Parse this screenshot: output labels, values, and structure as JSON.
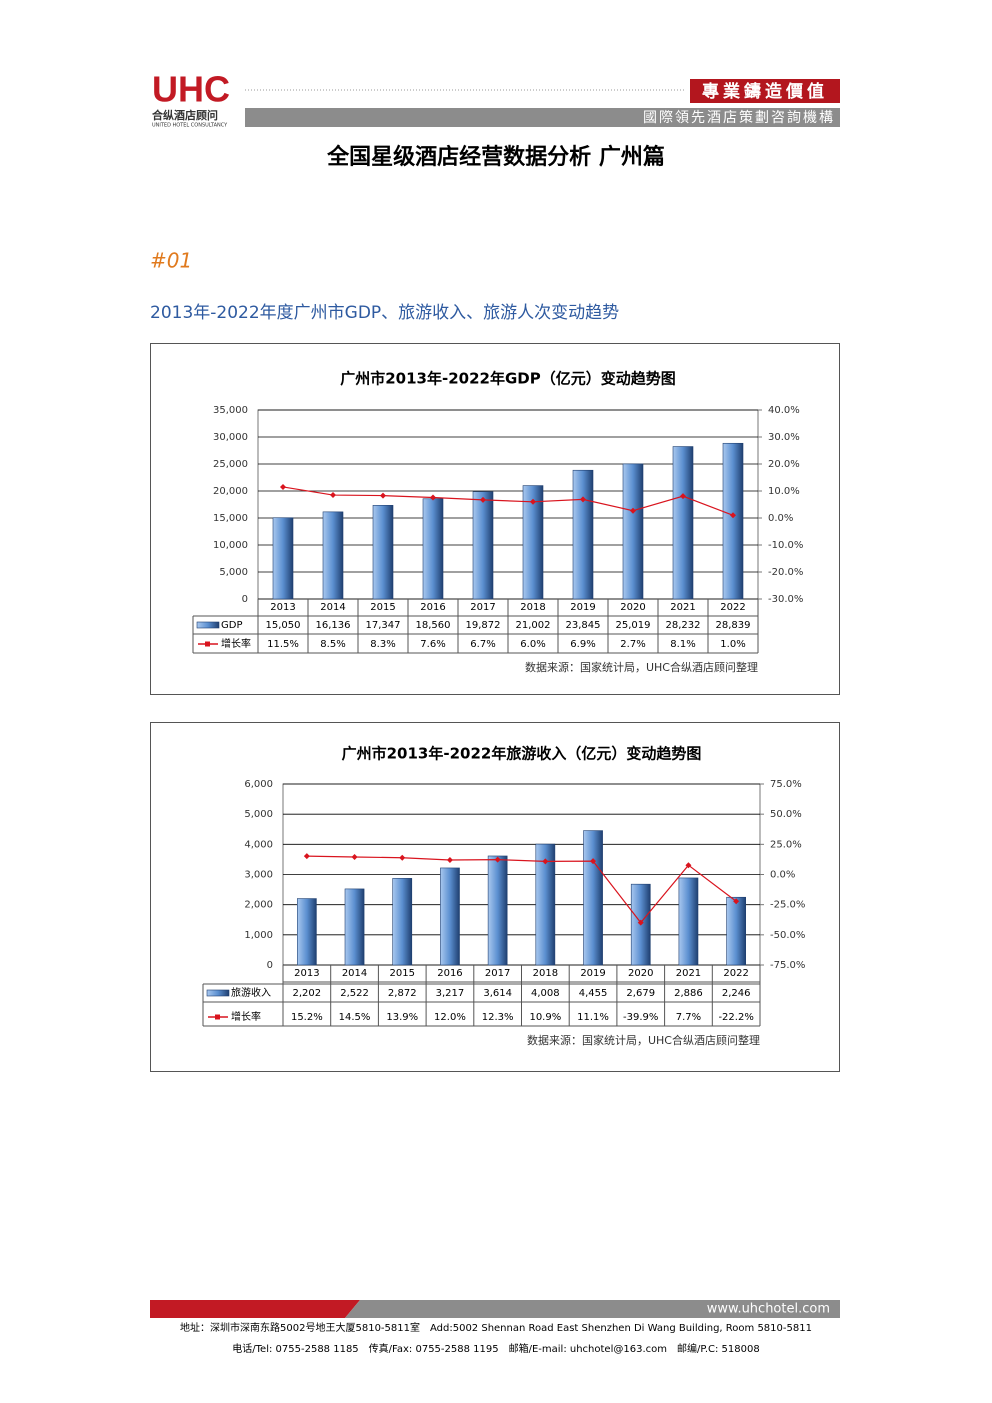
{
  "header": {
    "logo": "UHC",
    "logo_cn": "合纵酒店顾问",
    "logo_en": "UNITED HOTEL CONSULTANCY",
    "slogan": "專業鑄造價值",
    "tagline": "國際領先酒店策劃咨詢機構"
  },
  "title": "全国星级酒店经营数据分析 广州篇",
  "section": "#01",
  "subtitle": "2013年-2022年度广州市GDP、旅游收入、旅游人次变动趋势",
  "chart_data": [
    {
      "type": "bar",
      "title": "广州市2013年-2022年GDP（亿元）变动趋势图",
      "grid": true,
      "categories": [
        "2013",
        "2014",
        "2015",
        "2016",
        "2017",
        "2018",
        "2019",
        "2020",
        "2021",
        "2022"
      ],
      "series": [
        {
          "name": "GDP",
          "color": "#5b8fd0",
          "values": [
            15050,
            16136,
            17347,
            18560,
            19872,
            21002,
            23845,
            25019,
            28232,
            28839
          ],
          "value_labels": [
            "15,050",
            "16,136",
            "17,347",
            "18,560",
            "19,872",
            "21,002",
            "23,845",
            "25,019",
            "28,232",
            "28,839"
          ]
        },
        {
          "name": "增长率",
          "color": "#d9141e",
          "axis": "y2",
          "values": [
            11.5,
            8.5,
            8.3,
            7.6,
            6.7,
            6.0,
            6.9,
            2.7,
            8.1,
            1.0
          ],
          "value_labels": [
            "11.5%",
            "8.5%",
            "8.3%",
            "7.6%",
            "6.7%",
            "6.0%",
            "6.9%",
            "2.7%",
            "8.1%",
            "1.0%"
          ]
        }
      ],
      "ylim": [
        0,
        35000
      ],
      "yticks": [
        0,
        {
          "value": 5000,
          "label": "5,000"
        },
        {
          "value": 10000,
          "label": "10,000"
        },
        {
          "value": 15000,
          "label": "15,000"
        },
        {
          "value": 20000,
          "label": "20,000"
        },
        {
          "value": 25000,
          "label": "25,000"
        },
        {
          "value": 30000,
          "label": "30,000"
        },
        {
          "value": 35000,
          "label": "35,000"
        }
      ],
      "y2lim": [
        -30,
        40
      ],
      "y2ticks": [
        {
          "value": -30,
          "label": "-30.0%"
        },
        {
          "value": -20,
          "label": "-20.0%"
        },
        {
          "value": -10,
          "label": "-10.0%"
        },
        {
          "value": 0,
          "label": "0.0%"
        },
        {
          "value": 10,
          "label": "10.0%"
        },
        {
          "value": 20,
          "label": "20.0%"
        },
        {
          "value": 30,
          "label": "30.0%"
        },
        {
          "value": 40,
          "label": "40.0%"
        }
      ],
      "source": "数据来源：国家统计局，UHC合纵酒店顾问整理"
    },
    {
      "type": "bar",
      "title": "广州市2013年-2022年旅游收入（亿元）变动趋势图",
      "grid": true,
      "categories": [
        "2013",
        "2014",
        "2015",
        "2016",
        "2017",
        "2018",
        "2019",
        "2020",
        "2021",
        "2022"
      ],
      "series": [
        {
          "name": "旅游收入",
          "color": "#5b8fd0",
          "values": [
            2202,
            2522,
            2872,
            3217,
            3614,
            4008,
            4455,
            2679,
            2886,
            2246
          ],
          "value_labels": [
            "2,202",
            "2,522",
            "2,872",
            "3,217",
            "3,614",
            "4,008",
            "4,455",
            "2,679",
            "2,886",
            "2,246"
          ]
        },
        {
          "name": "增长率",
          "color": "#d9141e",
          "axis": "y2",
          "values": [
            15.2,
            14.5,
            13.9,
            12.0,
            12.3,
            10.9,
            11.1,
            -39.9,
            7.7,
            -22.2
          ],
          "value_labels": [
            "15.2%",
            "14.5%",
            "13.9%",
            "12.0%",
            "12.3%",
            "10.9%",
            "11.1%",
            "-39.9%",
            "7.7%",
            "-22.2%"
          ]
        }
      ],
      "ylim": [
        0,
        6000
      ],
      "yticks": [
        0,
        {
          "value": 1000,
          "label": "1,000"
        },
        {
          "value": 2000,
          "label": "2,000"
        },
        {
          "value": 3000,
          "label": "3,000"
        },
        {
          "value": 4000,
          "label": "4,000"
        },
        {
          "value": 5000,
          "label": "5,000"
        },
        {
          "value": 6000,
          "label": "6,000"
        }
      ],
      "y2lim": [
        -75,
        75
      ],
      "y2ticks": [
        {
          "value": -75,
          "label": "-75.0%"
        },
        {
          "value": -50,
          "label": "-50.0%"
        },
        {
          "value": -25,
          "label": "-25.0%"
        },
        {
          "value": 0,
          "label": "0.0%"
        },
        {
          "value": 25,
          "label": "25.0%"
        },
        {
          "value": 50,
          "label": "50.0%"
        },
        {
          "value": 75,
          "label": "75.0%"
        }
      ],
      "source": "数据来源：国家统计局，UHC合纵酒店顾问整理"
    }
  ],
  "footer": {
    "website": "www.uhchotel.com",
    "address": "地址：深圳市深南东路5002号地王大厦5810-5811室　Add:5002 Shennan Road East Shenzhen Di Wang Building, Room 5810-5811",
    "contact": "电话/Tel: 0755-2588 1185　传真/Fax: 0755-2588 1195　邮箱/E-mail: uhchotel@163.com　邮编/P.C: 518008"
  }
}
